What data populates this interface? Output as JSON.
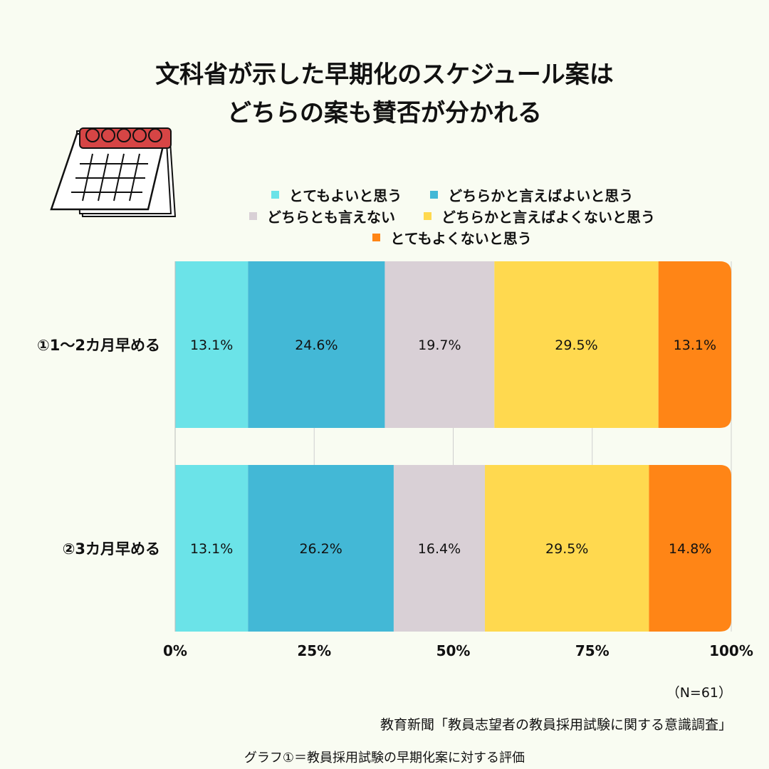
{
  "title_lines": [
    "文科省が示した早期化のスケジュール案は",
    "どちらの案も賛否が分かれる"
  ],
  "colors": {
    "とてもよいと思う": "#6be3e8",
    "どちらかと言えばよいと思う": "#43b8d6",
    "どちらとも言えない": "#d9d0d6",
    "どちらかと言えばよくないと思う": "#ffd94f",
    "とてもよくないと思う": "#ff8516",
    "calendar_red": "#d64545",
    "background": "#f9fcf2"
  },
  "chart_data": {
    "type": "bar",
    "orientation": "horizontal",
    "stacked": true,
    "categories": [
      "①1〜2カ月早める",
      "②3カ月早める"
    ],
    "series": [
      {
        "name": "とてもよいと思う",
        "values": [
          13.1,
          13.1
        ]
      },
      {
        "name": "どちらかと言えばよいと思う",
        "values": [
          24.6,
          26.2
        ]
      },
      {
        "name": "どちらとも言えない",
        "values": [
          19.7,
          16.4
        ]
      },
      {
        "name": "どちらかと言えばよくないと思う",
        "values": [
          29.5,
          29.5
        ]
      },
      {
        "name": "とてもよくないと思う",
        "values": [
          13.1,
          14.8
        ]
      }
    ],
    "xlim": [
      0,
      100
    ],
    "x_ticks": [
      "0%",
      "25%",
      "50%",
      "75%",
      "100%"
    ],
    "x_tick_values": [
      0,
      25,
      50,
      75,
      100
    ],
    "value_suffix": "%",
    "legend_position": "top",
    "grid": true
  },
  "legend_rows": [
    [
      "とてもよいと思う",
      "どちらかと言えばよいと思う"
    ],
    [
      "どちらとも言えない",
      "どちらかと言えばよくないと思う"
    ],
    [
      "とてもよくないと思う"
    ]
  ],
  "notes": {
    "n": "（N=61）",
    "source": "教育新聞「教員志望者の教員採用試験に関する意識調査」",
    "caption": "グラフ①＝教員採用試験の早期化案に対する評価"
  }
}
